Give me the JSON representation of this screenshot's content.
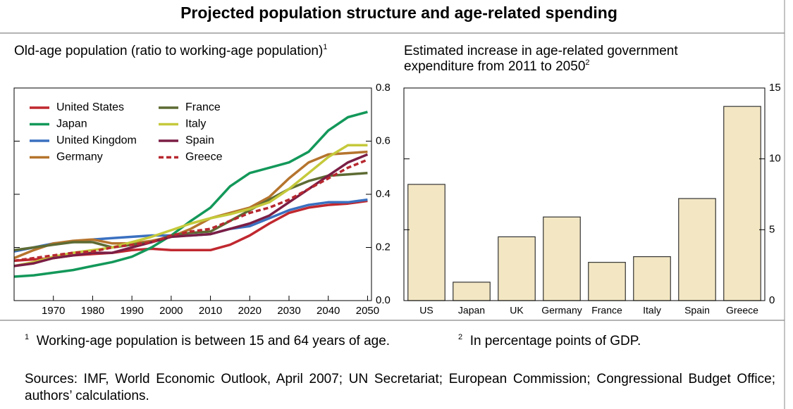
{
  "title": "Projected population structure and age-related spending",
  "chart_data": [
    {
      "type": "line",
      "title": "Old-age population (ratio to working-age population)",
      "title_note": "1",
      "x": [
        1960,
        1965,
        1970,
        1975,
        1980,
        1985,
        1990,
        1995,
        2000,
        2005,
        2010,
        2015,
        2020,
        2025,
        2030,
        2035,
        2040,
        2045,
        2050
      ],
      "xlim": [
        1960,
        2051
      ],
      "xticks": [
        1970,
        1980,
        1990,
        2000,
        2010,
        2020,
        2030,
        2040,
        2050
      ],
      "ylim": [
        0,
        0.8
      ],
      "yticks": [
        {
          "value": 0,
          "label": "0.0"
        },
        0.2,
        0.4,
        0.6,
        0.8
      ],
      "legend": "upper left",
      "series": [
        {
          "name": "United States",
          "color": "#c0282f",
          "values": [
            0.15,
            0.155,
            0.16,
            0.17,
            0.175,
            0.18,
            0.19,
            0.195,
            0.19,
            0.19,
            0.19,
            0.21,
            0.245,
            0.29,
            0.33,
            0.35,
            0.36,
            0.365,
            0.375
          ]
        },
        {
          "name": "Japan",
          "color": "#13985a",
          "values": [
            0.09,
            0.095,
            0.105,
            0.115,
            0.13,
            0.145,
            0.165,
            0.2,
            0.245,
            0.3,
            0.35,
            0.43,
            0.48,
            0.5,
            0.52,
            0.56,
            0.64,
            0.69,
            0.71
          ]
        },
        {
          "name": "United Kingdom",
          "color": "#3a70c0",
          "values": [
            0.185,
            0.2,
            0.215,
            0.22,
            0.23,
            0.235,
            0.24,
            0.245,
            0.245,
            0.245,
            0.25,
            0.27,
            0.28,
            0.31,
            0.34,
            0.36,
            0.37,
            0.37,
            0.38
          ]
        },
        {
          "name": "Germany",
          "color": "#b5742d",
          "values": [
            0.16,
            0.19,
            0.215,
            0.225,
            0.23,
            0.215,
            0.215,
            0.225,
            0.24,
            0.27,
            0.31,
            0.33,
            0.35,
            0.39,
            0.46,
            0.52,
            0.55,
            0.555,
            0.56
          ]
        },
        {
          "name": "France",
          "color": "#5d6b33",
          "values": [
            0.19,
            0.2,
            0.21,
            0.22,
            0.22,
            0.2,
            0.21,
            0.22,
            0.245,
            0.255,
            0.26,
            0.3,
            0.34,
            0.38,
            0.42,
            0.45,
            0.47,
            0.475,
            0.48
          ]
        },
        {
          "name": "Italy",
          "color": "#c5c93b",
          "values": [
            0.13,
            0.145,
            0.165,
            0.18,
            0.19,
            0.2,
            0.22,
            0.24,
            0.265,
            0.29,
            0.31,
            0.325,
            0.345,
            0.37,
            0.42,
            0.48,
            0.54,
            0.585,
            0.585
          ]
        },
        {
          "name": "Spain",
          "color": "#7b1e45",
          "values": [
            0.13,
            0.14,
            0.16,
            0.17,
            0.18,
            0.18,
            0.2,
            0.22,
            0.24,
            0.245,
            0.25,
            0.27,
            0.29,
            0.32,
            0.37,
            0.42,
            0.47,
            0.52,
            0.55
          ]
        },
        {
          "name": "Greece",
          "color": "#b7282f",
          "dash": "dashed",
          "values": [
            0.15,
            0.16,
            0.17,
            0.18,
            0.185,
            0.2,
            0.21,
            0.22,
            0.245,
            0.26,
            0.27,
            0.3,
            0.33,
            0.35,
            0.38,
            0.42,
            0.46,
            0.5,
            0.53
          ]
        }
      ]
    },
    {
      "type": "bar",
      "title": "Estimated increase in age-related government expenditure from 2011 to 2050",
      "title_note": "2",
      "categories": [
        "US",
        "Japan",
        "UK",
        "Germany",
        "France",
        "Italy",
        "Spain",
        "Greece"
      ],
      "values": [
        8.2,
        1.3,
        4.5,
        5.9,
        2.7,
        3.1,
        7.2,
        13.7
      ],
      "color": "#f3e7c3",
      "edgecolor": "#333333",
      "ylim": [
        0,
        15
      ],
      "yticks": [
        0,
        5,
        10,
        15
      ]
    }
  ],
  "footnotes": [
    {
      "mark": "1",
      "text": "Working-age population is between 15 and 64 years of age."
    },
    {
      "mark": "2",
      "text": "In percentage points of GDP."
    }
  ],
  "sources": "Sources: IMF, World Economic Outlook, April 2007; UN Secretariat; European Commission; Congressional Budget Office; authors’ calculations."
}
